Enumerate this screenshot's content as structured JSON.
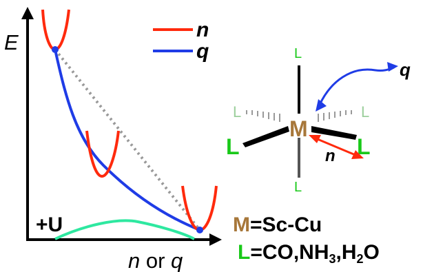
{
  "plot": {
    "y_axis_label": "E",
    "x_axis_label_n": "n",
    "x_axis_label_or": " or ",
    "x_axis_label_q": "q",
    "plus_u_label": "+U"
  },
  "legend": {
    "items": [
      {
        "label": "n",
        "color": "#ff2a0d"
      },
      {
        "label": "q",
        "color": "#1f3ce6"
      }
    ]
  },
  "molecule": {
    "metal_label": "M",
    "ligand_label": "L",
    "q_label": "q",
    "n_label": "n"
  },
  "formula": {
    "metal_symbol": "M",
    "metal_rest": "=Sc-Cu",
    "ligand_symbol": "L",
    "ligand_p1": "=CO,NH",
    "ligand_sub1": "3",
    "ligand_p2": ",H",
    "ligand_sub2": "2",
    "ligand_p3": "O"
  },
  "colors": {
    "red": "#ff2a0d",
    "blue": "#1f3ce6",
    "green_curve": "#2ee8a0",
    "ligand_green": "#19c919",
    "ligand_light": "#9ccf9c",
    "metal_brown": "#a7773a",
    "dotted_gray": "#999999"
  }
}
